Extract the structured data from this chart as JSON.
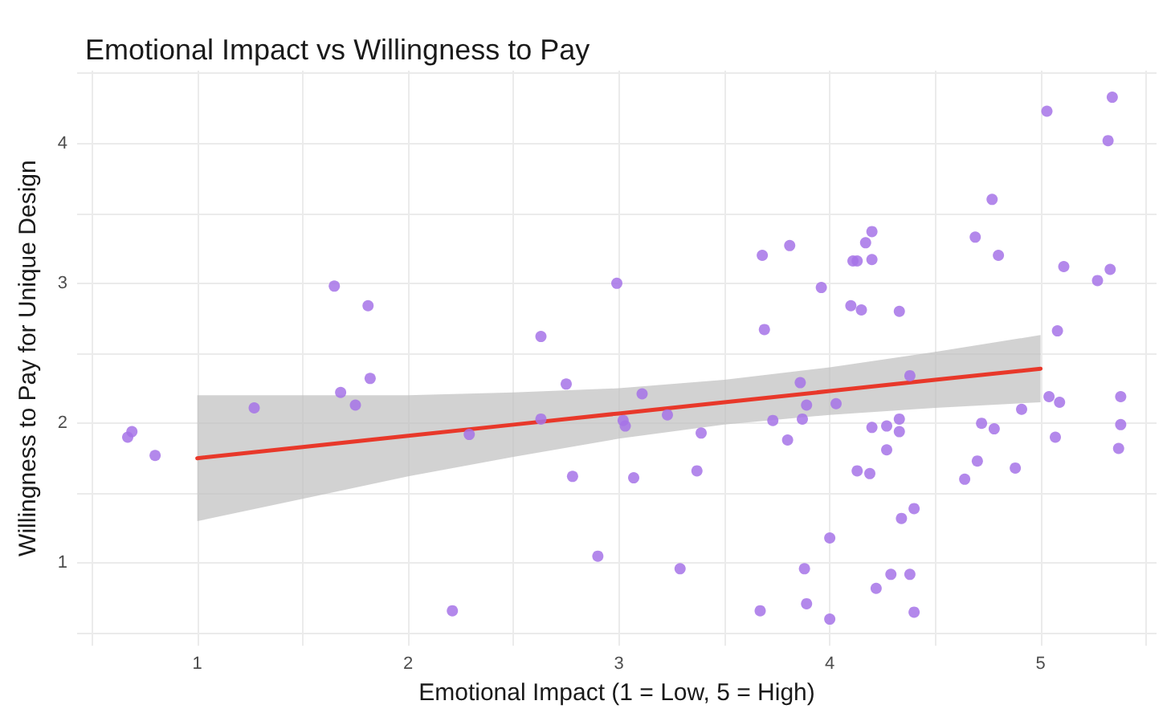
{
  "chart_data": {
    "type": "scatter",
    "title": "Emotional Impact vs Willingness to Pay",
    "xlabel": "Emotional Impact (1 = Low, 5 = High)",
    "ylabel": "Willingness to Pay for Unique Design",
    "xlim": [
      0.43,
      5.55
    ],
    "ylim": [
      0.41,
      4.52
    ],
    "xticks": [
      {
        "value": 0.5,
        "label": null
      },
      1,
      {
        "value": 1.5,
        "label": null
      },
      2,
      {
        "value": 2.5,
        "label": null
      },
      3,
      {
        "value": 3.5,
        "label": null
      },
      4,
      {
        "value": 4.5,
        "label": null
      },
      5,
      {
        "value": 5.5,
        "label": null
      }
    ],
    "yticks": [
      {
        "value": 0.5,
        "label": null
      },
      1,
      {
        "value": 1.5,
        "label": null
      },
      2,
      {
        "value": 2.5,
        "label": null
      },
      3,
      {
        "value": 3.5,
        "label": null
      },
      4,
      {
        "value": 4.5,
        "label": null
      }
    ],
    "grid": true,
    "marker": "circle",
    "series": [
      {
        "color": "#a673e8",
        "x": [
          0.67,
          0.69,
          0.8,
          1.27,
          1.65,
          1.68,
          1.75,
          1.81,
          1.82,
          2.21,
          2.29,
          2.63,
          2.63,
          2.75,
          2.78,
          2.9,
          2.99,
          3.02,
          3.03,
          3.07,
          3.11,
          3.23,
          3.29,
          3.37,
          3.39,
          3.67,
          3.68,
          3.69,
          3.73,
          3.8,
          3.81,
          3.86,
          3.89,
          3.87,
          3.88,
          3.89,
          3.96,
          4.0,
          4.0,
          4.03,
          4.1,
          4.11,
          4.13,
          4.15,
          4.17,
          4.2,
          4.2,
          4.2,
          4.27,
          4.33,
          4.33,
          4.27,
          4.13,
          4.19,
          4.4,
          4.34,
          4.29,
          4.38,
          4.22,
          4.4,
          4.33,
          4.38,
          4.64,
          4.7,
          4.69,
          4.72,
          4.77,
          4.78,
          4.8,
          4.88,
          4.91,
          5.03,
          5.04,
          5.07,
          5.08,
          5.09,
          5.11,
          5.27,
          5.32,
          5.33,
          5.34,
          5.37,
          5.38,
          5.38
        ],
        "values": [
          1.9,
          1.94,
          1.77,
          2.11,
          2.98,
          2.22,
          2.13,
          2.84,
          2.32,
          0.66,
          1.92,
          2.62,
          2.03,
          2.28,
          1.62,
          1.05,
          3.0,
          2.02,
          1.98,
          1.61,
          2.21,
          2.06,
          0.96,
          1.66,
          1.93,
          0.66,
          3.2,
          2.67,
          2.02,
          1.88,
          3.27,
          2.29,
          2.13,
          2.03,
          0.96,
          0.71,
          2.97,
          1.18,
          0.6,
          2.14,
          2.84,
          3.16,
          3.16,
          2.81,
          3.29,
          3.37,
          3.17,
          1.97,
          1.98,
          2.03,
          1.94,
          1.81,
          1.66,
          1.64,
          1.39,
          1.32,
          0.92,
          0.92,
          0.82,
          0.65,
          2.8,
          2.34,
          1.6,
          1.73,
          3.33,
          2.0,
          3.6,
          1.96,
          3.2,
          1.68,
          2.1,
          4.23,
          2.19,
          1.9,
          2.66,
          2.15,
          3.12,
          3.02,
          4.02,
          3.1,
          4.33,
          1.82,
          1.99,
          2.19
        ]
      },
      {
        "type": "line",
        "color": "#e8382a",
        "marker": "none",
        "line_style": "solid",
        "x": [
          1,
          1.5,
          2,
          2.5,
          3,
          3.5,
          4,
          4.5,
          5
        ],
        "values": [
          1.75,
          1.83,
          1.91,
          1.99,
          2.07,
          2.15,
          2.23,
          2.31,
          2.39
        ],
        "lower": [
          1.3,
          1.46,
          1.62,
          1.76,
          1.89,
          1.99,
          2.06,
          2.11,
          2.15
        ],
        "upper": [
          2.2,
          2.2,
          2.2,
          2.22,
          2.25,
          2.31,
          2.4,
          2.51,
          2.63
        ]
      }
    ]
  }
}
